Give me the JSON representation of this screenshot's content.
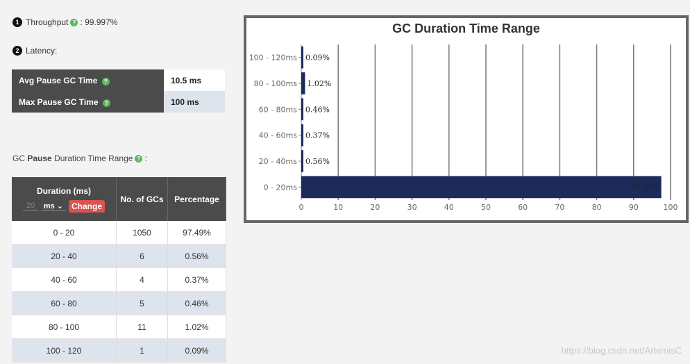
{
  "throughput": {
    "badge": "1",
    "label": "Throughput",
    "sep": ":",
    "value": "99.997%"
  },
  "latency": {
    "badge": "2",
    "label": "Latency:",
    "rows": [
      {
        "label": "Avg Pause GC Time",
        "value": "10.5 ms"
      },
      {
        "label": "Max Pause GC Time",
        "value": "100 ms"
      }
    ]
  },
  "gc_range": {
    "title_pre": "GC ",
    "title_bold": "Pause",
    "title_post": " Duration Time Range",
    "title_colon": ":",
    "headers": {
      "duration": "Duration (ms)",
      "count": "No. of GCs",
      "percentage": "Percentage"
    },
    "unit_input_placeholder": "20",
    "unit_select": "ms",
    "change_button": "Change",
    "rows": [
      {
        "duration": "0 - 20",
        "count": "1050",
        "pct": "97.49%"
      },
      {
        "duration": "20 - 40",
        "count": "6",
        "pct": "0.56%"
      },
      {
        "duration": "40 - 60",
        "count": "4",
        "pct": "0.37%"
      },
      {
        "duration": "60 - 80",
        "count": "5",
        "pct": "0.46%"
      },
      {
        "duration": "80 - 100",
        "count": "11",
        "pct": "1.02%"
      },
      {
        "duration": "100 - 120",
        "count": "1",
        "pct": "0.09%"
      }
    ]
  },
  "chart_data": {
    "type": "bar",
    "orientation": "horizontal",
    "title": "GC Duration Time Range",
    "categories": [
      "0 - 20ms",
      "20 - 40ms",
      "40 - 60ms",
      "60 - 80ms",
      "80 - 100ms",
      "100 - 120ms"
    ],
    "values": [
      97.49,
      0.56,
      0.37,
      0.46,
      1.02,
      0.09
    ],
    "value_labels": [
      "97.49%",
      "0.56%",
      "0.37%",
      "0.46%",
      "1.02%",
      "0.09%"
    ],
    "xlim": [
      0,
      100
    ],
    "xticks": [
      0,
      10,
      20,
      30,
      40,
      50,
      60,
      70,
      80,
      90,
      100
    ],
    "grid": "vertical",
    "bar_color": "#1e2a5a",
    "xlabel": "",
    "ylabel": ""
  },
  "watermark": "https://blog.csdn.net/ArtemisC"
}
